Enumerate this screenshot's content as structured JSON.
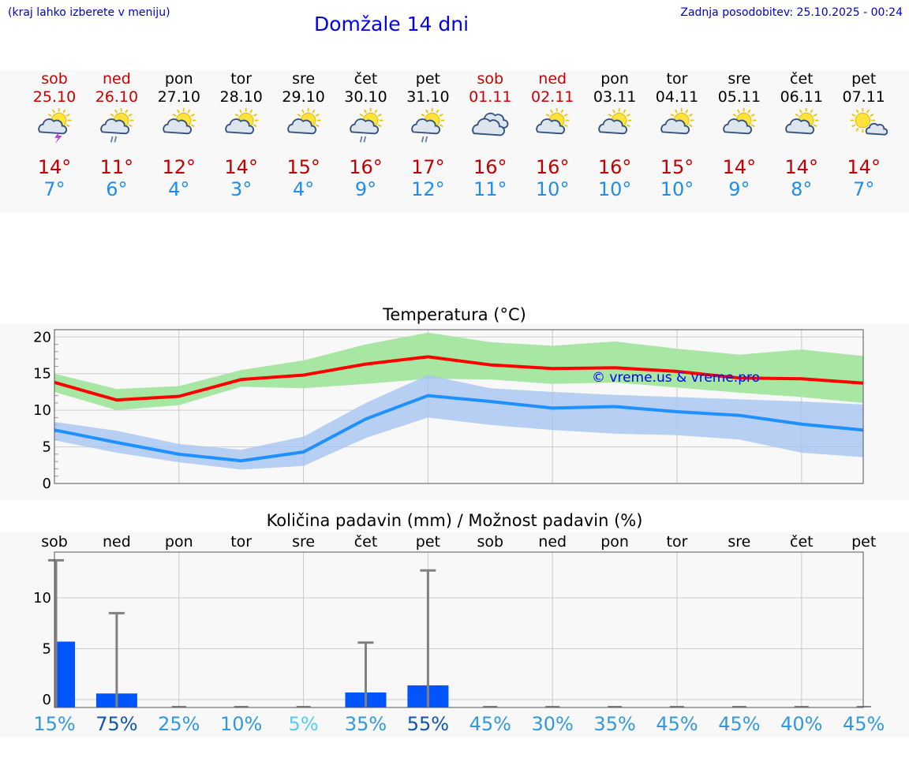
{
  "header": {
    "hint": "(kraj lahko izberete v meniju)",
    "title": "Domžale 14 dni",
    "updated": "Zadnja posodobitev: 25.10.2025 - 00:24"
  },
  "days": [
    {
      "name": "sob",
      "date": "25.10",
      "weekend": true,
      "icon": "sun-cloud-thunder-icon",
      "max": "14°",
      "min": "7°"
    },
    {
      "name": "ned",
      "date": "26.10",
      "weekend": true,
      "icon": "sun-cloud-rain-icon",
      "max": "11°",
      "min": "6°"
    },
    {
      "name": "pon",
      "date": "27.10",
      "weekend": false,
      "icon": "sun-cloud-icon",
      "max": "12°",
      "min": "4°"
    },
    {
      "name": "tor",
      "date": "28.10",
      "weekend": false,
      "icon": "sun-cloud-icon",
      "max": "14°",
      "min": "3°"
    },
    {
      "name": "sre",
      "date": "29.10",
      "weekend": false,
      "icon": "sun-cloud-icon",
      "max": "15°",
      "min": "4°"
    },
    {
      "name": "čet",
      "date": "30.10",
      "weekend": false,
      "icon": "sun-cloud-rain-icon",
      "max": "16°",
      "min": "9°"
    },
    {
      "name": "pet",
      "date": "31.10",
      "weekend": false,
      "icon": "sun-cloud-rain-icon",
      "max": "17°",
      "min": "12°"
    },
    {
      "name": "sob",
      "date": "01.11",
      "weekend": true,
      "icon": "cloudy-icon",
      "max": "16°",
      "min": "11°"
    },
    {
      "name": "ned",
      "date": "02.11",
      "weekend": true,
      "icon": "sun-cloud-icon",
      "max": "16°",
      "min": "10°"
    },
    {
      "name": "pon",
      "date": "03.11",
      "weekend": false,
      "icon": "sun-cloud-icon",
      "max": "16°",
      "min": "10°"
    },
    {
      "name": "tor",
      "date": "04.11",
      "weekend": false,
      "icon": "sun-cloud-icon",
      "max": "15°",
      "min": "10°"
    },
    {
      "name": "sre",
      "date": "05.11",
      "weekend": false,
      "icon": "sun-cloud-icon",
      "max": "14°",
      "min": "9°"
    },
    {
      "name": "čet",
      "date": "06.11",
      "weekend": false,
      "icon": "sun-cloud-icon",
      "max": "14°",
      "min": "8°"
    },
    {
      "name": "pet",
      "date": "07.11",
      "weekend": false,
      "icon": "sun-small-cloud-icon",
      "max": "14°",
      "min": "7°"
    }
  ],
  "colors": {
    "max_line": "#ff0000",
    "max_band": "#a8e6a4",
    "min_line": "#1e90ff",
    "min_band": "#a8c4f2",
    "bar": "#0055ff",
    "whisker": "#808080",
    "weekend": "#cc0000",
    "temp_max_text": "#c00000",
    "temp_min_text": "#1e8ee8"
  },
  "chart_data": [
    {
      "type": "line",
      "title": "Temperatura (°C)",
      "categories": [
        "25.10",
        "26.10",
        "27.10",
        "28.10",
        "29.10",
        "30.10",
        "31.10",
        "01.11",
        "02.11",
        "03.11",
        "04.11",
        "05.11",
        "06.11",
        "07.11"
      ],
      "ylim": [
        0,
        21
      ],
      "yticks": [
        0,
        5,
        10,
        15,
        20
      ],
      "grid": true,
      "watermark": "© vreme.us & vreme.pro",
      "series": [
        {
          "values": [
            13.8,
            11.4,
            11.9,
            14.2,
            14.8,
            16.3,
            17.3,
            16.2,
            15.7,
            15.8,
            15.3,
            14.4,
            14.3,
            13.7
          ],
          "band_low": [
            12.5,
            10.0,
            10.7,
            13.2,
            13.0,
            13.6,
            14.3,
            14.2,
            13.6,
            13.8,
            13.1,
            12.4,
            11.8,
            11.0
          ],
          "band_high": [
            15.0,
            12.9,
            13.3,
            15.5,
            16.8,
            19.0,
            20.6,
            19.3,
            18.8,
            19.4,
            18.4,
            17.6,
            18.3,
            17.4
          ]
        },
        {
          "values": [
            7.3,
            5.6,
            4.0,
            3.1,
            4.3,
            8.8,
            12.0,
            11.2,
            10.3,
            10.5,
            9.8,
            9.3,
            8.1,
            7.3
          ],
          "band_low": [
            5.9,
            4.2,
            2.9,
            1.9,
            2.4,
            6.2,
            9.0,
            8.0,
            7.3,
            6.8,
            6.6,
            6.0,
            4.2,
            3.6
          ],
          "band_high": [
            8.4,
            7.2,
            5.4,
            4.6,
            6.4,
            11.0,
            14.8,
            13.0,
            12.5,
            12.1,
            11.8,
            11.5,
            11.2,
            10.8
          ]
        }
      ]
    },
    {
      "type": "bar",
      "title": "Količina padavin (mm) / Možnost padavin (%)",
      "categories": [
        "sob",
        "ned",
        "pon",
        "tor",
        "sre",
        "čet",
        "pet",
        "sob",
        "ned",
        "pon",
        "tor",
        "sre",
        "čet",
        "pet"
      ],
      "ylim": [
        0,
        14.5
      ],
      "yticks": [
        0,
        5,
        10
      ],
      "grid": true,
      "values": [
        5.7,
        0.6,
        0,
        0,
        0,
        0.7,
        1.4,
        0,
        0,
        0,
        0,
        0,
        0,
        0
      ],
      "max_values": [
        13.7,
        8.5,
        0,
        0,
        0,
        5.6,
        12.7,
        0,
        0,
        0,
        0,
        0,
        0,
        0
      ],
      "probability": [
        "15%",
        "75%",
        "25%",
        "10%",
        "5%",
        "35%",
        "55%",
        "45%",
        "30%",
        "35%",
        "45%",
        "45%",
        "40%",
        "45%"
      ],
      "probability_colors": [
        "#3399dd",
        "#1155aa",
        "#3399dd",
        "#3399dd",
        "#55ccee",
        "#3399dd",
        "#1155aa",
        "#3399dd",
        "#3399dd",
        "#3399dd",
        "#3399dd",
        "#3399dd",
        "#3399dd",
        "#3399dd"
      ]
    }
  ]
}
